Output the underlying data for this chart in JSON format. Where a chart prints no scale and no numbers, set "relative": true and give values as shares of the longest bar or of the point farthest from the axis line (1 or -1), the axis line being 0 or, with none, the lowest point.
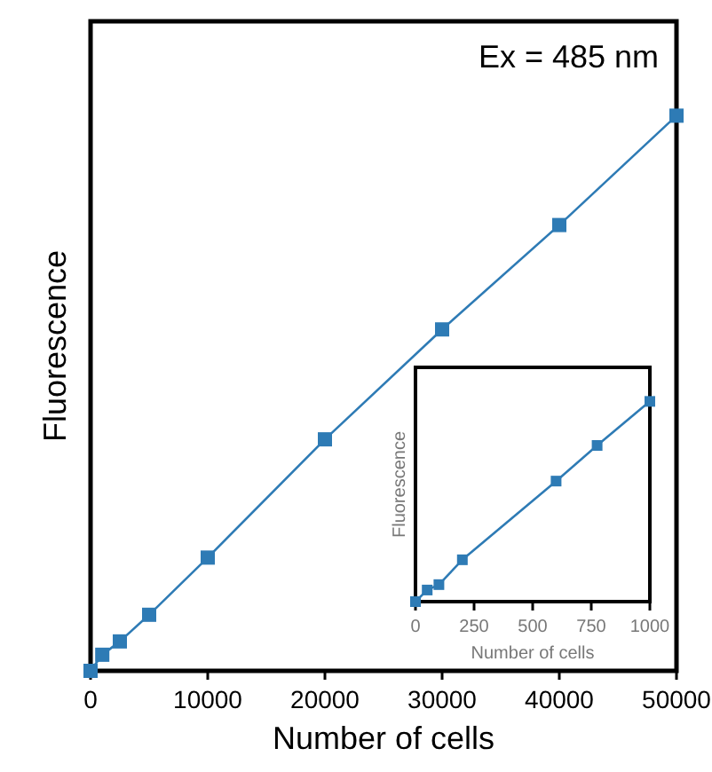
{
  "chart_data": [
    {
      "type": "line",
      "xlabel": "Number of cells",
      "ylabel": "Fluorescence",
      "annotations": [
        "Ex = 485 nm"
      ],
      "relative": true,
      "marker": "square",
      "line_style": "solid",
      "x": [
        0,
        1000,
        2500,
        5000,
        10000,
        20000,
        30000,
        40000,
        50000
      ],
      "xlim": [
        0,
        50000
      ],
      "xticks": [
        0,
        10000,
        20000,
        30000,
        40000,
        50000
      ],
      "series": [
        {
          "color": "#2e7bb5",
          "values": [
            0,
            0.029,
            0.053,
            0.101,
            0.204,
            0.417,
            0.615,
            0.803,
            1
          ]
        }
      ]
    },
    {
      "type": "line",
      "xlabel": "Number of cells",
      "ylabel": "Fluorescence",
      "relative": true,
      "marker": "square",
      "line_style": "solid",
      "x": [
        0,
        50,
        100,
        200,
        600,
        775,
        1000
      ],
      "xlim": [
        0,
        1000
      ],
      "xticks": [
        0,
        250,
        500,
        750,
        1000
      ],
      "series": [
        {
          "color": "#2e7bb5",
          "values": [
            0,
            0.058,
            0.085,
            0.209,
            0.602,
            0.78,
            1
          ]
        }
      ]
    }
  ]
}
